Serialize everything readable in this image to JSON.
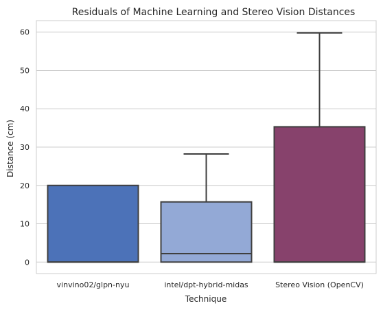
{
  "chart_data": {
    "type": "box",
    "title": "Residuals of Machine Learning and Stereo Vision Distances",
    "xlabel": "Technique",
    "ylabel": "Distance (cm)",
    "ylim": [
      -3,
      63
    ],
    "yticks": [
      0,
      10,
      20,
      30,
      40,
      50,
      60
    ],
    "grid": true,
    "categories": [
      "vinvino02/glpn-nyu",
      "intel/dpt-hybrid-midas",
      "Stereo Vision (OpenCV)"
    ],
    "boxes": [
      {
        "category": "vinvino02/glpn-nyu",
        "whislo": 0,
        "q1": 0,
        "med": 0,
        "q3": 20,
        "whishi": 20,
        "color": "#4c72b8"
      },
      {
        "category": "intel/dpt-hybrid-midas",
        "whislo": 0,
        "q1": 0,
        "med": 2.2,
        "q3": 15.7,
        "whishi": 28.2,
        "color": "#93a9d6"
      },
      {
        "category": "Stereo Vision (OpenCV)",
        "whislo": 0,
        "q1": 0,
        "med": 0,
        "q3": 35.3,
        "whishi": 59.8,
        "color": "#87426c"
      }
    ]
  }
}
